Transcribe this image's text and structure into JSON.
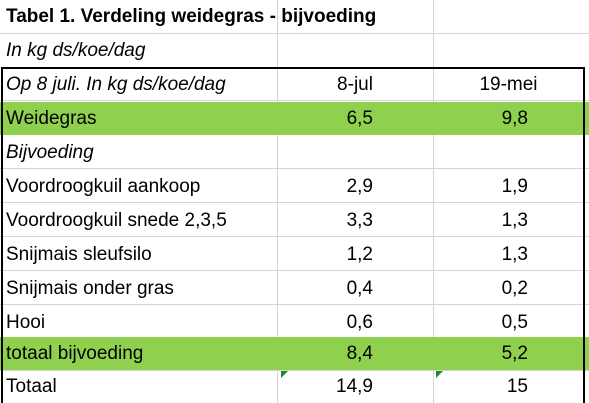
{
  "title": "Tabel 1. Verdeling weidegras - bijvoeding",
  "subtitle": "In kg ds/koe/dag",
  "header": {
    "label": "Op 8 juli. In kg ds/koe/dag",
    "col1": "8-jul",
    "col2": "19-mei"
  },
  "rows": [
    {
      "label": "Weidegras",
      "v1": "6,5",
      "v2": "9,8"
    },
    {
      "label": "Bijvoeding",
      "v1": "",
      "v2": ""
    },
    {
      "label": "Voordroogkuil aankoop",
      "v1": "2,9",
      "v2": "1,9"
    },
    {
      "label": "Voordroogkuil snede 2,3,5",
      "v1": "3,3",
      "v2": "1,3"
    },
    {
      "label": "Snijmais sleufsilo",
      "v1": "1,2",
      "v2": "1,3"
    },
    {
      "label": "Snijmais onder gras",
      "v1": "0,4",
      "v2": "0,2"
    },
    {
      "label": "Hooi",
      "v1": "0,6",
      "v2": "0,5"
    },
    {
      "label": "totaal bijvoeding",
      "v1": "8,4",
      "v2": "5,2"
    },
    {
      "label": "Totaal",
      "v1": "14,9",
      "v2": "15"
    }
  ],
  "colors": {
    "highlight": "#8fd14f",
    "grid": "#d4d4d4",
    "border": "#000000",
    "error_marker": "#1f8c2b"
  }
}
